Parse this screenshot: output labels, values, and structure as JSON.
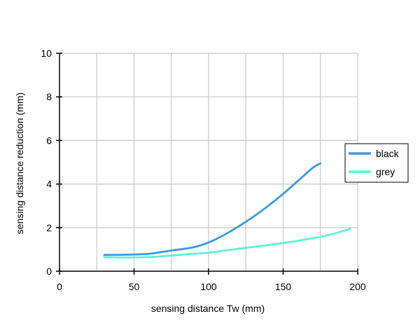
{
  "chart_data": {
    "type": "line",
    "title": "",
    "xlabel": "sensing distance Tw (mm)",
    "ylabel": "sensing distance reduction (mm)",
    "xlim": [
      0,
      200
    ],
    "ylim": [
      0,
      10
    ],
    "x_ticks": [
      0,
      50,
      100,
      150,
      200
    ],
    "y_ticks": [
      0,
      2,
      4,
      6,
      8,
      10
    ],
    "x_tick_labels": [
      "0",
      "50",
      "100",
      "150",
      "200"
    ],
    "y_tick_labels": [
      "0",
      "2",
      "4",
      "6",
      "8",
      "10"
    ],
    "x_minor_step": 25,
    "grid": true,
    "legend_position": "right",
    "series": [
      {
        "name": "black",
        "color": "#3a9ae0",
        "points": [
          [
            30,
            0.75
          ],
          [
            45,
            0.76
          ],
          [
            60,
            0.8
          ],
          [
            75,
            0.95
          ],
          [
            90,
            1.1
          ],
          [
            100,
            1.32
          ],
          [
            110,
            1.65
          ],
          [
            120,
            2.05
          ],
          [
            130,
            2.5
          ],
          [
            140,
            3.0
          ],
          [
            150,
            3.55
          ],
          [
            160,
            4.15
          ],
          [
            170,
            4.75
          ],
          [
            175,
            4.95
          ]
        ]
      },
      {
        "name": "grey",
        "color": "#5ef2d6",
        "points": [
          [
            30,
            0.65
          ],
          [
            45,
            0.63
          ],
          [
            60,
            0.65
          ],
          [
            75,
            0.72
          ],
          [
            90,
            0.8
          ],
          [
            100,
            0.85
          ],
          [
            120,
            1.03
          ],
          [
            140,
            1.2
          ],
          [
            160,
            1.4
          ],
          [
            180,
            1.65
          ],
          [
            195,
            1.95
          ]
        ]
      }
    ]
  }
}
